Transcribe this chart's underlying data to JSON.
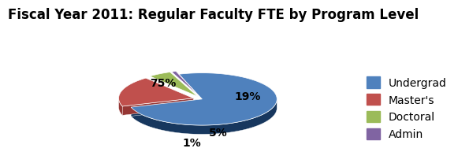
{
  "title": "Fiscal Year 2011: Regular Faculty FTE by Program Level",
  "labels": [
    "Undergrad",
    "Master’s",
    "Doctoral",
    "Admin"
  ],
  "values": [
    75,
    19,
    5,
    1
  ],
  "colors": [
    "#4F81BD",
    "#C0504D",
    "#9BBB59",
    "#8064A2"
  ],
  "dark_colors": [
    "#17375E",
    "#963634",
    "#76923C",
    "#5F497A"
  ],
  "explode": [
    0.0,
    0.12,
    0.12,
    0.12
  ],
  "startangle": 108,
  "title_fontsize": 12,
  "legend_labels": [
    "Undergrad",
    "Master's",
    "Doctoral",
    "Admin"
  ],
  "ellipse_ratio": 0.35,
  "depth": 0.12
}
